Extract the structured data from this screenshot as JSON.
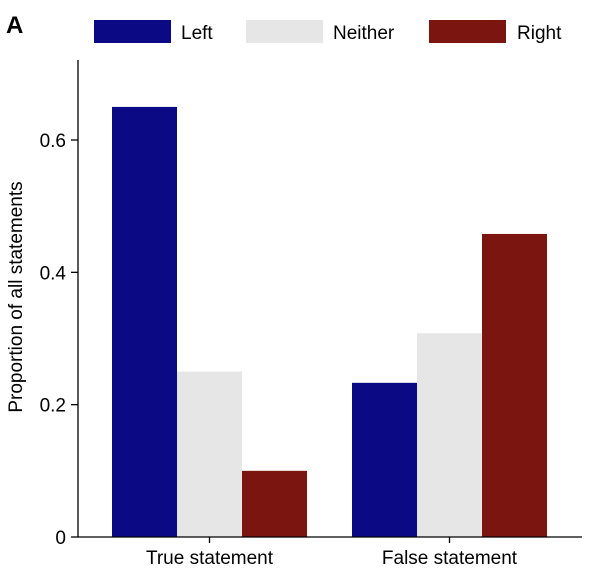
{
  "panel_label": "A",
  "colors": {
    "Left": "#0b0a84",
    "Neither": "#e6e6e6",
    "Right": "#7b1510"
  },
  "chart_data": {
    "type": "bar",
    "categories": [
      "True statement",
      "False statement"
    ],
    "series": [
      {
        "name": "Left",
        "values": [
          0.65,
          0.233
        ]
      },
      {
        "name": "Neither",
        "values": [
          0.25,
          0.308
        ]
      },
      {
        "name": "Right",
        "values": [
          0.1,
          0.458
        ]
      }
    ],
    "title": "",
    "xlabel": "",
    "ylabel": "Proportion of all statements",
    "ylim": [
      0,
      0.72
    ],
    "yticks": [
      0,
      0.2,
      0.4,
      0.6
    ],
    "ytick_labels": [
      "0",
      "0.2",
      "0.4",
      "0.6"
    ],
    "grid": false,
    "legend": "top"
  }
}
